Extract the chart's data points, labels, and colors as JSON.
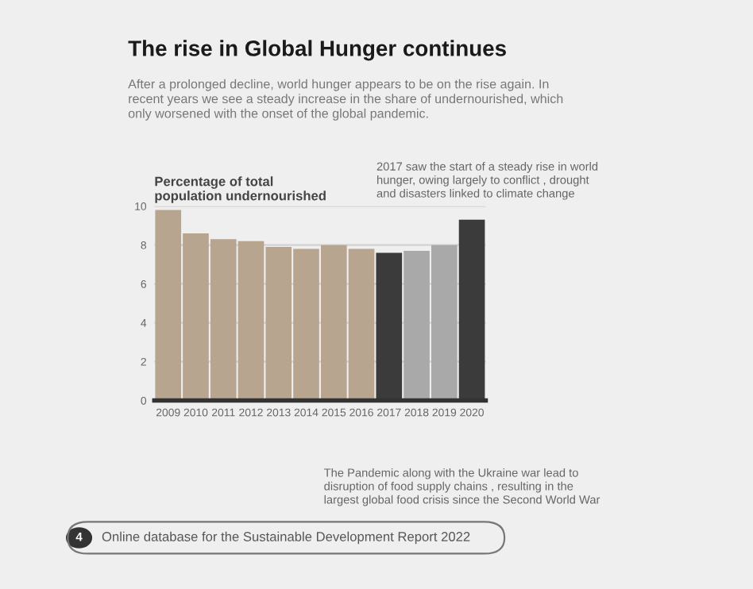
{
  "chart_data": {
    "type": "bar",
    "title": "The rise in Global Hunger continues",
    "subtitle": "After a prolonged decline, world hunger appears to be on the rise again. In\nrecent years we see a steady increase in the share of undernourished, which\nonly worsened with the onset of the global pandemic.",
    "ylabel": "Percentage of total\npopulation undernourished",
    "categories": [
      "2009",
      "2010",
      "2011",
      "2012",
      "2013",
      "2014",
      "2015",
      "2016",
      "2017",
      "2018",
      "2019",
      "2020"
    ],
    "values": [
      9.8,
      8.6,
      8.3,
      8.2,
      7.9,
      7.8,
      8.0,
      7.8,
      7.6,
      7.7,
      8.0,
      9.3
    ],
    "colors": [
      "#b8a590",
      "#b8a590",
      "#b8a590",
      "#b8a590",
      "#b8a590",
      "#b8a590",
      "#b8a590",
      "#b8a590",
      "#3b3b3b",
      "#a9a9a9",
      "#a9a9a9",
      "#3b3b3b"
    ],
    "ylim": [
      0,
      10
    ],
    "yticks": [
      0,
      2,
      4,
      6,
      8,
      10
    ],
    "grid": "y",
    "legend": false,
    "annotations": [
      "2017 saw the start of a steady rise in world\nhunger, owing largely to conflict , drought\nand disasters linked to climate change",
      "The Pandemic along with the Ukraine war lead to\ndisruption of food supply chains , resulting in the\nlargest global food crisis since the Second World War",
      "4",
      "Online database for the Sustainable Development Report 2022"
    ]
  }
}
